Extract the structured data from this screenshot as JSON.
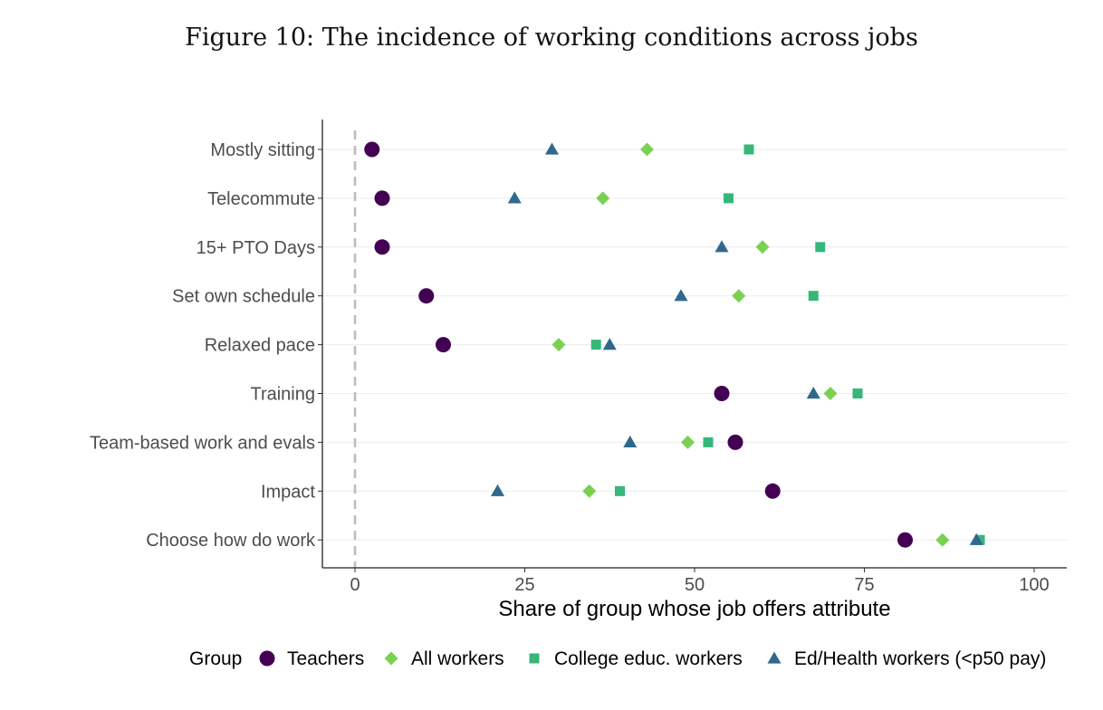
{
  "figure": {
    "title": "Figure 10: The incidence of working conditions across jobs"
  },
  "chart_data": {
    "type": "scatter",
    "title": "Figure 10: The incidence of working conditions across jobs",
    "xlabel": "Share of group whose job offers attribute",
    "ylabel": "",
    "xlim": [
      -10,
      105
    ],
    "xticks": [
      0,
      25,
      50,
      75,
      100
    ],
    "reference_line": {
      "x": 0,
      "style": "dashed"
    },
    "categories": [
      "Mostly sitting",
      "Telecommute",
      "15+ PTO Days",
      "Set own schedule",
      "Relaxed pace",
      "Training",
      "Team-based work and evals",
      "Impact",
      "Choose how do work"
    ],
    "legend_title": "Group",
    "legend_position": "bottom",
    "series": [
      {
        "name": "Teachers",
        "marker": "circle",
        "color": "#440154",
        "values": [
          2.5,
          4,
          4,
          10.5,
          13,
          54,
          56,
          61.5,
          81
        ]
      },
      {
        "name": "All workers",
        "marker": "diamond",
        "color": "#7AD151",
        "values": [
          43,
          36.5,
          60,
          56.5,
          30,
          70,
          49,
          34.5,
          86.5
        ]
      },
      {
        "name": "College educ. workers",
        "marker": "square",
        "color": "#35B779",
        "values": [
          58,
          55,
          68.5,
          67.5,
          35.5,
          74,
          52,
          39,
          92
        ]
      },
      {
        "name": "Ed/Health workers (<p50 pay)",
        "marker": "triangle",
        "color": "#31688E",
        "values": [
          29,
          23.5,
          54,
          48,
          37.5,
          67.5,
          40.5,
          21,
          91.5
        ]
      }
    ]
  }
}
